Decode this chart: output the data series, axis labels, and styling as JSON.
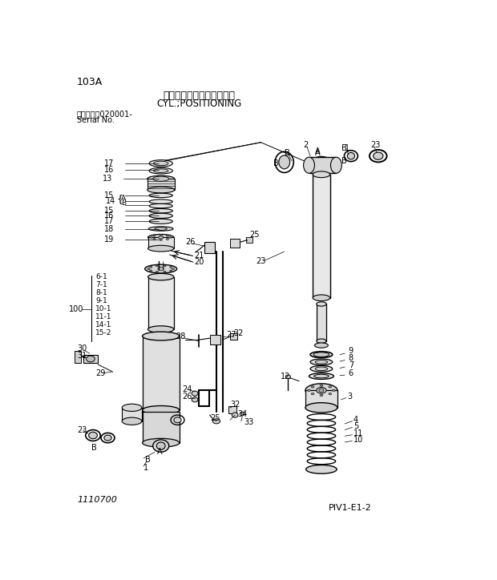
{
  "title_jp": "シリンダ；ボジショニング",
  "title_en": "CYL.;POSITIONING",
  "page_code": "103A",
  "serial_label": "適用号機　020001-",
  "serial_no": "Serial No.",
  "bottom_left": "1110700",
  "bottom_right": "PⅠV1-E1-2",
  "bg_color": "#ffffff",
  "line_color": "#000000",
  "fig_width": 6.2,
  "fig_height": 7.24,
  "dpi": 100
}
